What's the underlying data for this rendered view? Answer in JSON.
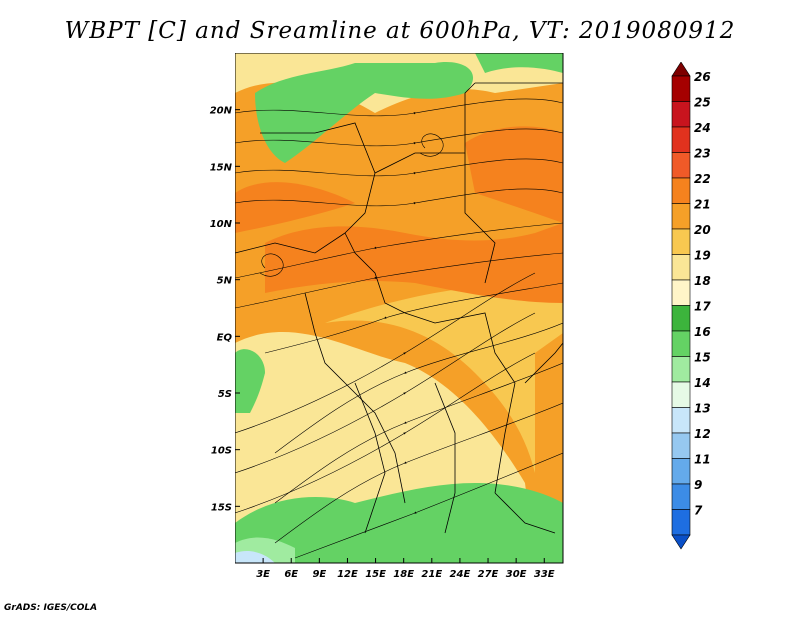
{
  "title": "WBPT [C] and Sreamline at 600hPa, VT: 2019080912",
  "credit": "GrADS: IGES/COLA",
  "map": {
    "lon_labels": [
      "3E",
      "6E",
      "9E",
      "12E",
      "15E",
      "18E",
      "21E",
      "24E",
      "27E",
      "30E",
      "33E"
    ],
    "lat_labels": [
      "20N",
      "15N",
      "10N",
      "5N",
      "EQ",
      "5S",
      "10S",
      "15S"
    ],
    "lon_range": [
      0,
      35
    ],
    "lat_range": [
      -20,
      25
    ]
  },
  "colorbar": {
    "labels": [
      "26",
      "25",
      "24",
      "23",
      "22",
      "21",
      "20",
      "19",
      "18",
      "17",
      "16",
      "15",
      "14",
      "13",
      "12",
      "11",
      "9",
      "7"
    ],
    "colors": [
      "#a50000",
      "#c8141e",
      "#e1321e",
      "#f05a28",
      "#f5821e",
      "#f5a028",
      "#f8c850",
      "#fae696",
      "#fff5c8",
      "#3cb43c",
      "#64d264",
      "#a0eba0",
      "#e6fae6",
      "#c8e6fa",
      "#96c8f0",
      "#64aaeb",
      "#3c8ce6",
      "#1e6ee1"
    ],
    "top_arrow_color": "#7d0000",
    "bottom_arrow_color": "#0a50c8"
  }
}
